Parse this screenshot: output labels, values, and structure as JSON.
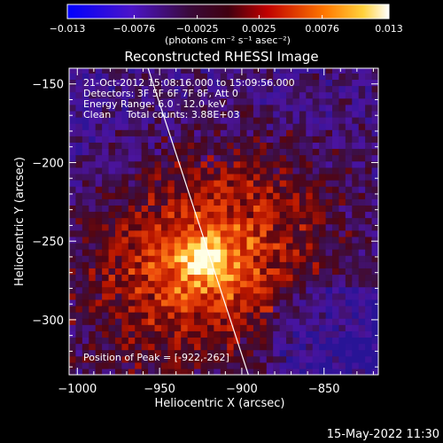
{
  "chart_data": {
    "type": "heatmap",
    "title": "Reconstructed RHESSI Image",
    "xlabel": "Heliocentric X (arcsec)",
    "ylabel": "Heliocentric Y (arcsec)",
    "xlim": [
      -1005,
      -817
    ],
    "ylim": [
      -335,
      -140
    ],
    "x_ticks": [
      -1000,
      -950,
      -900,
      -850
    ],
    "x_tick_labels": [
      "-1000",
      "-950",
      "-900",
      "-850"
    ],
    "y_ticks": [
      -150,
      -200,
      -250,
      -300
    ],
    "y_tick_labels": [
      "-150",
      "-200",
      "-250",
      "-300"
    ],
    "colorbar": {
      "min": -0.013,
      "max": 0.013,
      "ticks": [
        -0.013,
        -0.0076,
        -0.0025,
        0.0025,
        0.0076,
        0.013
      ],
      "tick_labels": [
        "-0.013",
        "-0.0076",
        "-0.0025",
        "0.0025",
        "0.0076",
        "0.013"
      ],
      "unit_label": "(photons cm⁻² s⁻¹ asec⁻²)"
    },
    "peak": [
      -922,
      -262
    ],
    "peak_label": "Position of Peak = [-922,-262]",
    "annotations": [
      "21-Oct-2012 15:08:16.000 to 15:09:56.000",
      "Detectors: 3F 5F 6F 7F 8F, Att 0",
      "Energy Range: 6.0 - 12.0 keV",
      "Clean     Total counts: 3.88E+03"
    ],
    "limb_line": {
      "x": [
        -957,
        -896
      ],
      "y": [
        -140,
        -335
      ]
    },
    "grid": false
  },
  "footer": {
    "date": "15-May-2022 11:30"
  }
}
